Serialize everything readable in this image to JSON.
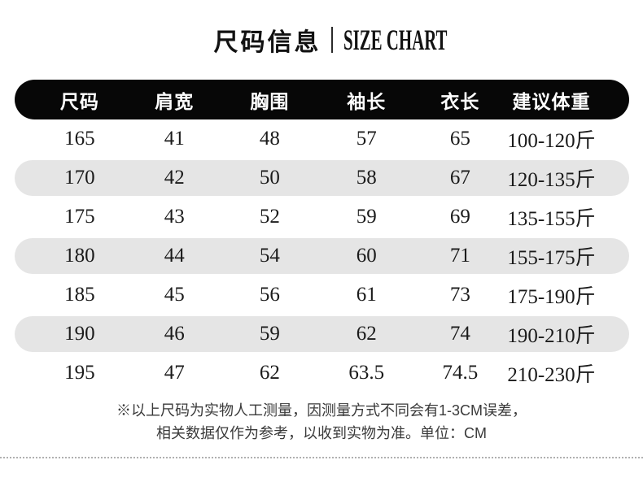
{
  "title": {
    "cn": "尺码信息",
    "en": "SIZE CHART"
  },
  "chart_data": {
    "type": "table",
    "title": "尺码信息 | SIZE CHART",
    "columns": [
      "尺码",
      "肩宽",
      "胸围",
      "袖长",
      "衣长",
      "建议体重"
    ],
    "rows": [
      [
        "165",
        "41",
        "48",
        "57",
        "65",
        "100-120斤"
      ],
      [
        "170",
        "42",
        "50",
        "58",
        "67",
        "120-135斤"
      ],
      [
        "175",
        "43",
        "52",
        "59",
        "69",
        "135-155斤"
      ],
      [
        "180",
        "44",
        "54",
        "60",
        "71",
        "155-175斤"
      ],
      [
        "185",
        "45",
        "56",
        "61",
        "73",
        "175-190斤"
      ],
      [
        "190",
        "46",
        "59",
        "62",
        "74",
        "190-210斤"
      ],
      [
        "195",
        "47",
        "62",
        "63.5",
        "74.5",
        "210-230斤"
      ]
    ],
    "unit": "CM"
  },
  "notes": {
    "line1": "※以上尺码为实物人工测量，因测量方式不同会有1-3CM误差，",
    "line2": "相关数据仅作为参考，以收到实物为准。单位：CM"
  },
  "colors": {
    "header_bg": "#070707",
    "header_text": "#ffffff",
    "row_alt_bg": "#e5e5e5",
    "body_text": "#1b1b1b",
    "note_text": "#3a3a3a",
    "divider": "#b0b0b0"
  }
}
